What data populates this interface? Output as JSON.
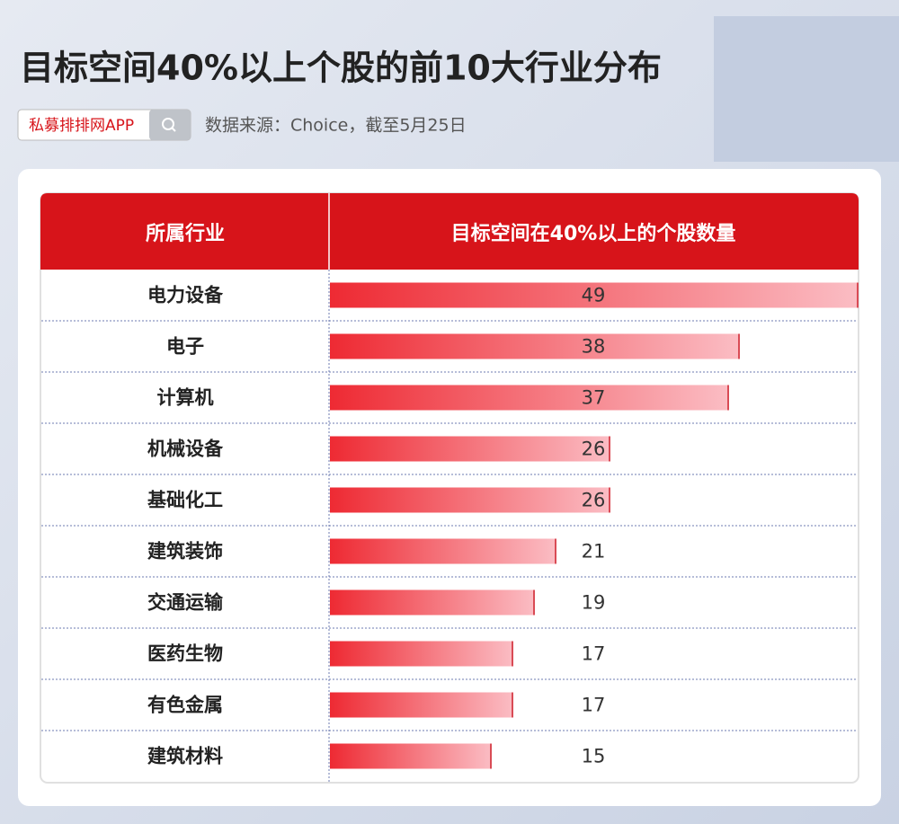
{
  "chart_data": {
    "type": "bar",
    "title": "目标空间40%以上个股的前10大行业分布",
    "badge": "私募排排网APP",
    "source": "数据来源：Choice，截至5月25日",
    "category_header": "所属行业",
    "value_header": "目标空间在40%以上的个股数量",
    "categories": [
      "电力设备",
      "电子",
      "计算机",
      "机械设备",
      "基础化工",
      "建筑装饰",
      "交通运输",
      "医药生物",
      "有色金属",
      "建筑材料"
    ],
    "values": [
      49,
      38,
      37,
      26,
      26,
      21,
      19,
      17,
      17,
      15
    ],
    "color": "#ee2a33"
  }
}
